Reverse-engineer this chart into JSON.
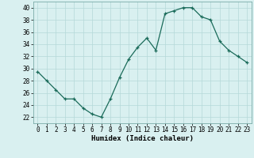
{
  "x": [
    0,
    1,
    2,
    3,
    4,
    5,
    6,
    7,
    8,
    9,
    10,
    11,
    12,
    13,
    14,
    15,
    16,
    17,
    18,
    19,
    20,
    21,
    22,
    23
  ],
  "y": [
    29.5,
    28,
    26.5,
    25,
    25,
    23.5,
    22.5,
    22,
    25,
    28.5,
    31.5,
    33.5,
    35,
    33,
    39,
    39.5,
    40,
    40,
    38.5,
    38,
    34.5,
    33,
    32,
    31
  ],
  "line_color": "#1a6b5a",
  "marker_color": "#1a6b5a",
  "bg_color": "#d9f0f0",
  "grid_color": "#b5d8d8",
  "xlabel": "Humidex (Indice chaleur)",
  "xlabel_fontsize": 6.5,
  "ylabel_ticks": [
    22,
    24,
    26,
    28,
    30,
    32,
    34,
    36,
    38,
    40
  ],
  "xlim": [
    -0.5,
    23.5
  ],
  "ylim": [
    21,
    41
  ],
  "tick_fontsize": 5.5
}
